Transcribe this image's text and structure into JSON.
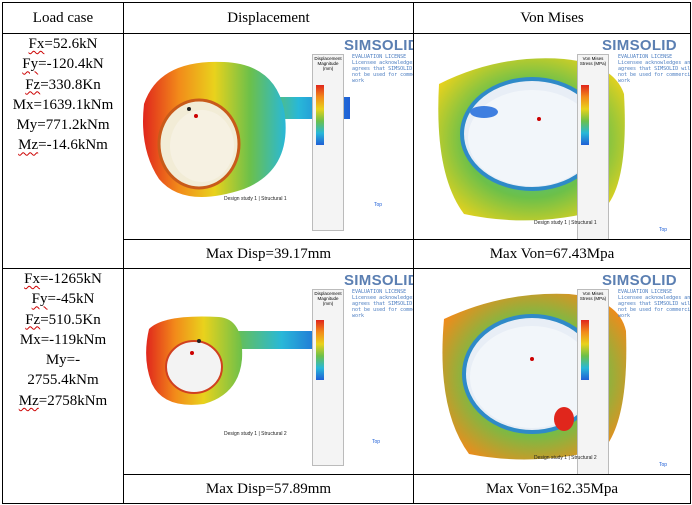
{
  "headers": {
    "load_case": "Load case",
    "displacement": "Displacement",
    "von_mises": "Von Mises"
  },
  "rows": [
    {
      "loads": [
        {
          "label": "Fx",
          "value": "=52.6kN"
        },
        {
          "label": "Fy",
          "value": "=-120.4kN"
        },
        {
          "label": "Fz",
          "value": "=330.8Kn"
        },
        {
          "label": "",
          "value": "Mx=1639.1kNm"
        },
        {
          "label": "",
          "value": "My=771.2kNm"
        },
        {
          "label": "Mz",
          "value": "=-14.6kNm"
        }
      ],
      "disp_caption": "Max Disp=39.17mm",
      "von_caption": "Max Von=67.43Mpa",
      "disp_study": "Design study 1 | Structural 1",
      "von_study": "Design study 1 | Structural 1"
    },
    {
      "loads": [
        {
          "label": "Fx",
          "value": "=-1265kN"
        },
        {
          "label": "Fy",
          "value": "=-45kN"
        },
        {
          "label": "Fz",
          "value": "=510.5Kn"
        },
        {
          "label": "",
          "value": "Mx=-119kNm"
        },
        {
          "label": "",
          "value": "My=-"
        },
        {
          "label": "",
          "value": "2755.4kNm"
        },
        {
          "label": "Mz",
          "value": "=2758kNm"
        }
      ],
      "disp_caption": "Max Disp=57.89mm",
      "von_caption": "Max Von=162.35Mpa",
      "disp_study": "Design study 1 | Structural 2",
      "von_study": "Design study 1 | Structural 2"
    }
  ],
  "plot": {
    "brand": "SIMSOLID",
    "eval_text": "EVALUATION LICENSE\nLicensee acknowledges and agrees that SIMSOLID will not be used for commercial work",
    "disp_panel_title": "Displacement Magnitude (mm)",
    "von_panel_title": "Von Mises Stress (MPa)",
    "axis_label": "Top",
    "colors": {
      "red": "#e0261c",
      "orange": "#f28a1a",
      "yellow": "#e9d21c",
      "green": "#6cc04a",
      "cyan": "#28b8d8",
      "blue": "#1f5fd6"
    }
  }
}
